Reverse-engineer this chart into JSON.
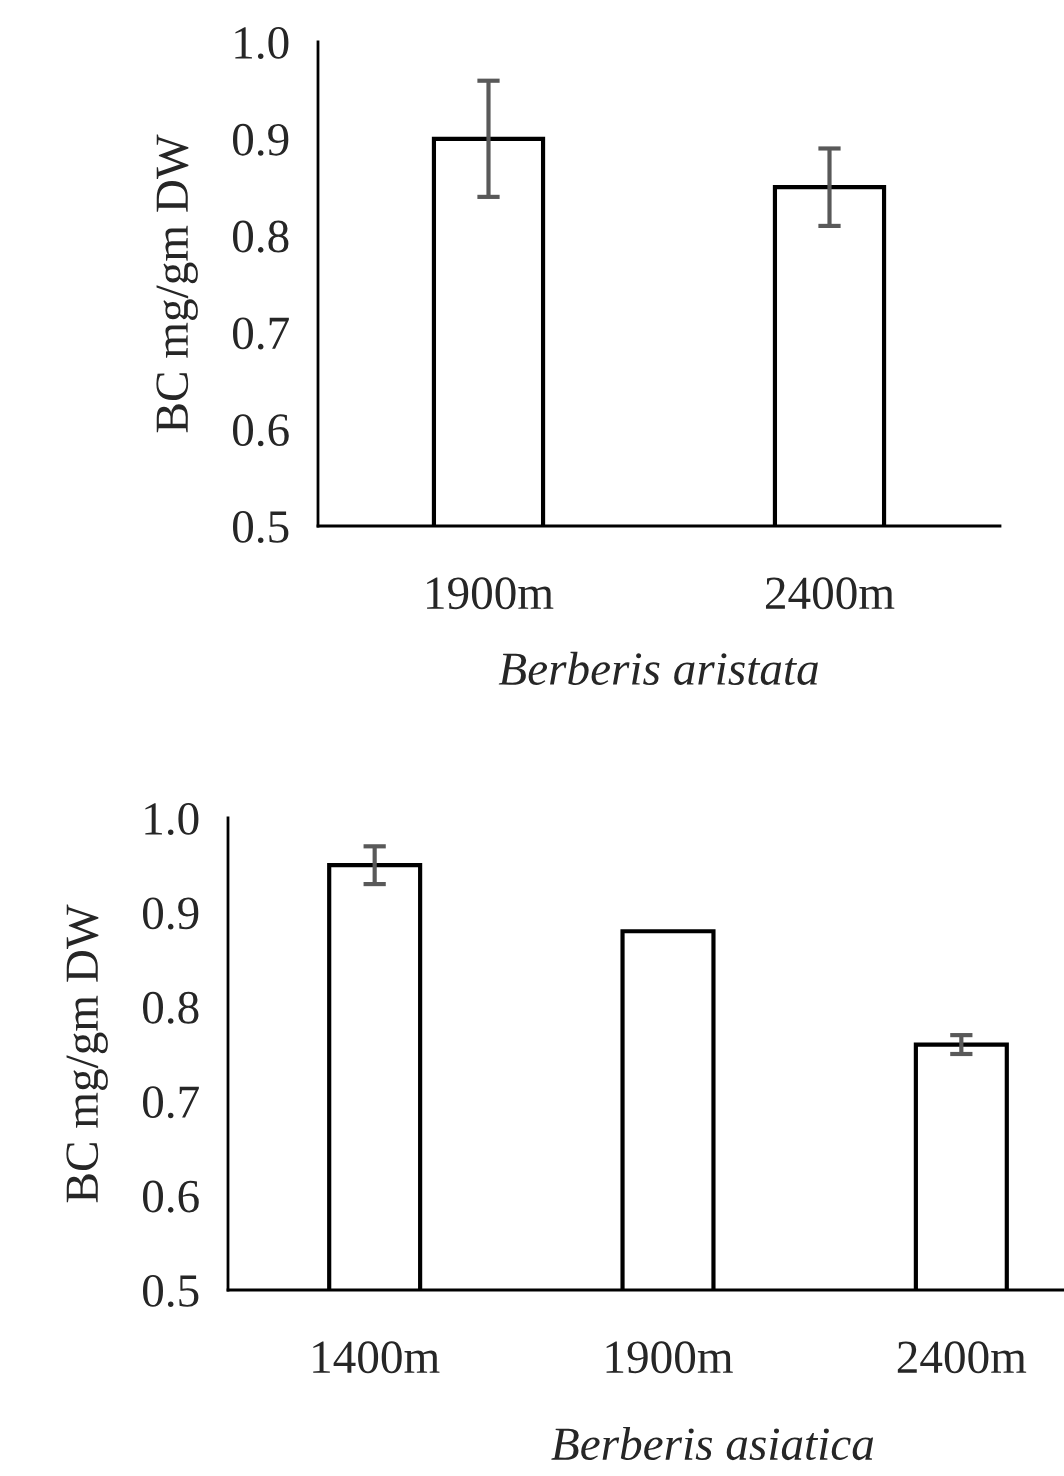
{
  "chart_data": [
    {
      "type": "bar",
      "xlabel": "Berberis aristata",
      "ylabel": "BC mg/gm DW",
      "categories": [
        "1900m",
        "2400m"
      ],
      "values": [
        0.9,
        0.85
      ],
      "errors": [
        0.06,
        0.04
      ],
      "color": "#ffffff",
      "ylim": [
        0.5,
        1.0
      ],
      "yticks": [
        {
          "value": 0.5,
          "label": "0.5"
        },
        {
          "value": 0.6,
          "label": "0.6"
        },
        {
          "value": 0.7,
          "label": "0.7"
        },
        {
          "value": 0.8,
          "label": "0.8"
        },
        {
          "value": 0.9,
          "label": "0.9"
        },
        {
          "value": 1.0,
          "label": "1.0"
        }
      ]
    },
    {
      "type": "bar",
      "xlabel": "Berberis asiatica",
      "ylabel": "BC mg/gm DW",
      "categories": [
        "1400m",
        "1900m",
        "2400m"
      ],
      "values": [
        0.95,
        0.88,
        0.76
      ],
      "errors": [
        0.02,
        null,
        0.01
      ],
      "color": "#ffffff",
      "ylim": [
        0.5,
        1.0
      ],
      "yticks": [
        {
          "value": 0.5,
          "label": "0.5"
        },
        {
          "value": 0.6,
          "label": "0.6"
        },
        {
          "value": 0.7,
          "label": "0.7"
        },
        {
          "value": 0.8,
          "label": "0.8"
        },
        {
          "value": 0.9,
          "label": "0.9"
        },
        {
          "value": 1.0,
          "label": "1.0"
        }
      ]
    }
  ]
}
